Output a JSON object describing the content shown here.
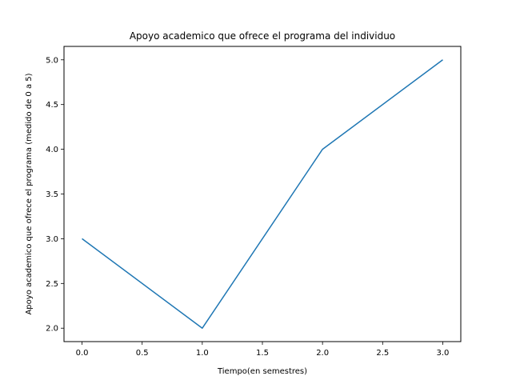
{
  "chart_data": {
    "type": "line",
    "title": "Apoyo academico que ofrece el programa del individuo",
    "xlabel": "Tiempo(en semestres)",
    "ylabel": "Apoyo academico que ofrece el programa (medido de 0 a 5)",
    "x": [
      0,
      1,
      2,
      3
    ],
    "series": [
      {
        "values": [
          3,
          2,
          4,
          5
        ],
        "color": "#1f77b4"
      }
    ],
    "xlim": [
      -0.15,
      3.15
    ],
    "ylim": [
      1.85,
      5.15
    ],
    "xticks": [
      0.0,
      0.5,
      1.0,
      1.5,
      2.0,
      2.5,
      3.0
    ],
    "yticks": [
      2.0,
      2.5,
      3.0,
      3.5,
      4.0,
      4.5,
      5.0
    ],
    "xtick_labels": [
      "0.0",
      "0.5",
      "1.0",
      "1.5",
      "2.0",
      "2.5",
      "3.0"
    ],
    "ytick_labels": [
      "2.0",
      "2.5",
      "3.0",
      "3.5",
      "4.0",
      "4.5",
      "5.0"
    ],
    "grid": false,
    "legend": "none"
  }
}
